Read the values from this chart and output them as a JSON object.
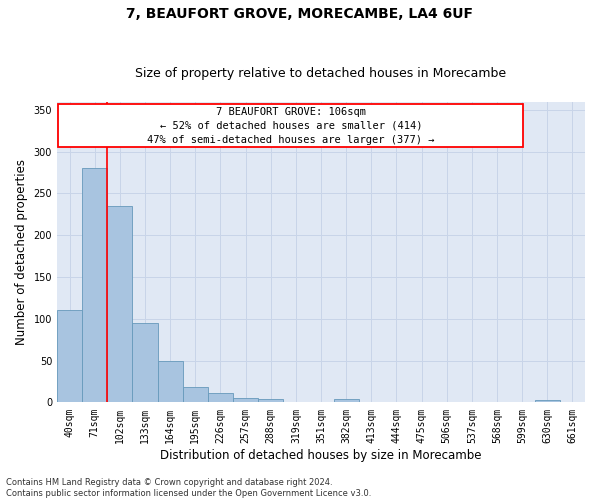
{
  "title": "7, BEAUFORT GROVE, MORECAMBE, LA4 6UF",
  "subtitle": "Size of property relative to detached houses in Morecambe",
  "xlabel": "Distribution of detached houses by size in Morecambe",
  "ylabel": "Number of detached properties",
  "bar_labels": [
    "40sqm",
    "71sqm",
    "102sqm",
    "133sqm",
    "164sqm",
    "195sqm",
    "226sqm",
    "257sqm",
    "288sqm",
    "319sqm",
    "351sqm",
    "382sqm",
    "413sqm",
    "444sqm",
    "475sqm",
    "506sqm",
    "537sqm",
    "568sqm",
    "599sqm",
    "630sqm",
    "661sqm"
  ],
  "bar_values": [
    110,
    280,
    235,
    95,
    49,
    18,
    11,
    5,
    4,
    0,
    0,
    4,
    0,
    0,
    0,
    0,
    0,
    0,
    0,
    3,
    0
  ],
  "bar_color": "#a8c4e0",
  "bar_edge_color": "#6699bb",
  "grid_color": "#c8d4e8",
  "background_color": "#e0e8f4",
  "ylim": [
    0,
    360
  ],
  "yticks": [
    0,
    50,
    100,
    150,
    200,
    250,
    300,
    350
  ],
  "red_line_x": 1.5,
  "annotation_text": "7 BEAUFORT GROVE: 106sqm\n← 52% of detached houses are smaller (414)\n47% of semi-detached houses are larger (377) →",
  "footnote": "Contains HM Land Registry data © Crown copyright and database right 2024.\nContains public sector information licensed under the Open Government Licence v3.0.",
  "title_fontsize": 10,
  "subtitle_fontsize": 9,
  "label_fontsize": 8.5,
  "tick_fontsize": 7,
  "annotation_fontsize": 7.5,
  "footnote_fontsize": 6
}
